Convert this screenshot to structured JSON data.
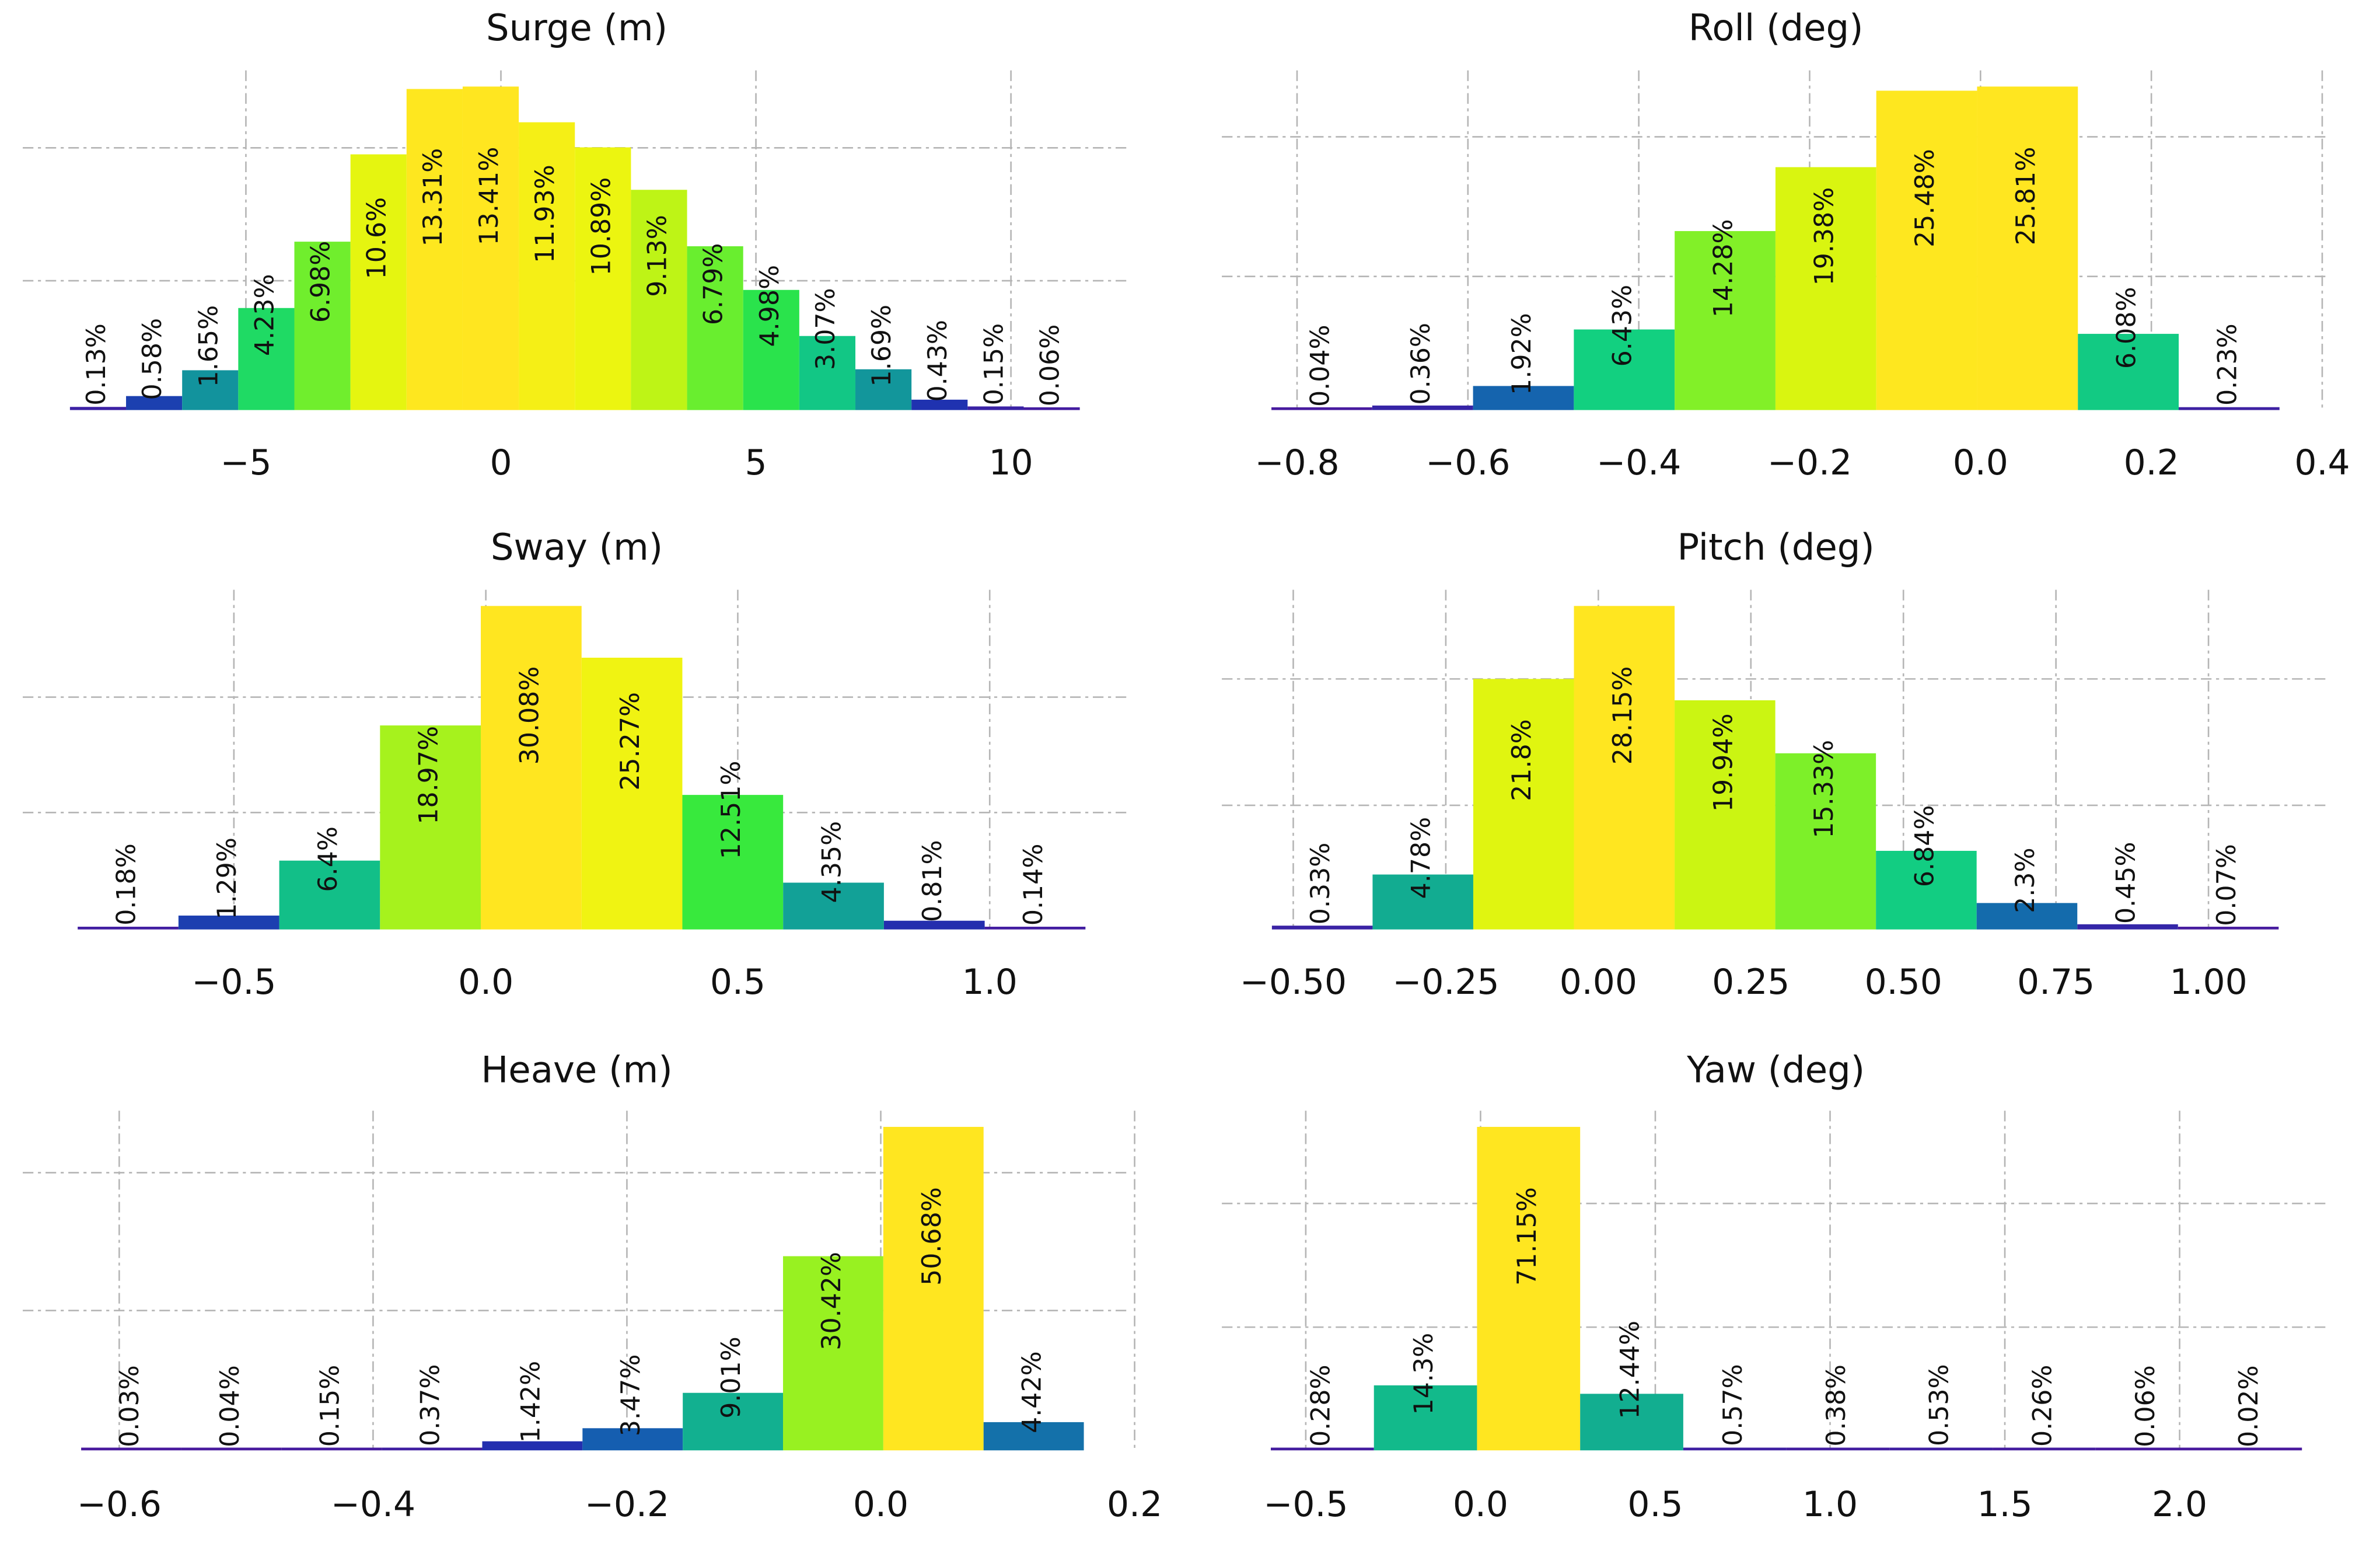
{
  "chart_data": [
    {
      "type": "bar",
      "title": "Surge (m)",
      "bin_start": -8.45,
      "bin_width": 1.1,
      "values": [
        0.13,
        0.58,
        1.65,
        4.23,
        6.98,
        10.6,
        13.31,
        13.41,
        11.93,
        10.89,
        9.13,
        6.79,
        4.98,
        3.07,
        1.69,
        0.43,
        0.15,
        0.06
      ],
      "labels": [
        "0.13%",
        "0.58%",
        "1.65%",
        "4.23%",
        "6.98%",
        "10.6%",
        "13.31%",
        "13.41%",
        "11.93%",
        "10.89%",
        "9.13%",
        "6.79%",
        "4.98%",
        "3.07%",
        "1.69%",
        "0.43%",
        "0.15%",
        "0.06%"
      ],
      "xlim": [
        -9.375,
        12.35
      ],
      "xticks": [
        -5,
        0,
        5,
        10
      ],
      "xtick_labels": [
        "−5",
        "0",
        "5",
        "10"
      ],
      "ygrid": [
        5.36,
        10.87
      ],
      "ymax": 13.41
    },
    {
      "type": "bar",
      "title": "Roll (deg)",
      "bin_start": -0.83,
      "bin_width": 0.118,
      "values": [
        0.04,
        0.36,
        1.92,
        6.43,
        14.28,
        19.38,
        25.48,
        25.81,
        6.08,
        0.23
      ],
      "labels": [
        "0.04%",
        "0.36%",
        "1.92%",
        "6.43%",
        "14.28%",
        "19.38%",
        "25.48%",
        "25.81%",
        "6.08%",
        "0.23%"
      ],
      "xlim": [
        -0.888,
        0.409
      ],
      "xticks": [
        -0.8,
        -0.6,
        -0.4,
        -0.2,
        0.0,
        0.2,
        0.4
      ],
      "xtick_labels": [
        "−0.8",
        "−0.6",
        "−0.4",
        "−0.2",
        "0.0",
        "0.2",
        "0.4"
      ],
      "ygrid": [
        10.66,
        21.8
      ],
      "ymax": 25.81
    },
    {
      "type": "bar",
      "title": "Sway (m)",
      "bin_start": -0.81,
      "bin_width": 0.2,
      "values": [
        0.18,
        1.29,
        6.4,
        18.97,
        30.08,
        25.27,
        12.51,
        4.35,
        0.81,
        0.14
      ],
      "labels": [
        "0.18%",
        "1.29%",
        "6.4%",
        "18.97%",
        "30.08%",
        "25.27%",
        "12.51%",
        "4.35%",
        "0.81%",
        "0.14%"
      ],
      "xlim": [
        -0.919,
        1.28
      ],
      "xticks": [
        -0.5,
        0.0,
        0.5,
        1.0
      ],
      "xtick_labels": [
        "−0.5",
        "0.0",
        "0.5",
        "1.0"
      ],
      "ygrid": [
        10.87,
        21.6
      ],
      "ymax": 30.08
    },
    {
      "type": "bar",
      "title": "Pitch (deg)",
      "bin_start": -0.535,
      "bin_width": 0.165,
      "values": [
        0.33,
        4.78,
        21.8,
        28.15,
        19.94,
        15.33,
        6.84,
        2.3,
        0.45,
        0.07
      ],
      "labels": [
        "0.33%",
        "4.78%",
        "21.8%",
        "28.15%",
        "19.94%",
        "15.33%",
        "6.84%",
        "2.3%",
        "0.45%",
        "0.07%"
      ],
      "xlim": [
        -0.617,
        1.199
      ],
      "xticks": [
        -0.5,
        -0.25,
        0.0,
        0.25,
        0.5,
        0.75,
        1.0
      ],
      "xtick_labels": [
        "−0.50",
        "−0.25",
        "0.00",
        "0.25",
        "0.50",
        "0.75",
        "1.00"
      ],
      "ygrid": [
        10.8,
        21.8
      ],
      "ymax": 28.15
    },
    {
      "type": "bar",
      "title": "Heave (m)",
      "bin_start": -0.63,
      "bin_width": 0.079,
      "values": [
        0.03,
        0.04,
        0.15,
        0.37,
        1.42,
        3.47,
        9.01,
        30.42,
        50.68,
        4.42
      ],
      "labels": [
        "0.03%",
        "0.04%",
        "0.15%",
        "0.37%",
        "1.42%",
        "3.47%",
        "9.01%",
        "30.42%",
        "50.68%",
        "4.42%"
      ],
      "xlim": [
        -0.676,
        0.197
      ],
      "xticks": [
        -0.6,
        -0.4,
        -0.2,
        0.0,
        0.2
      ],
      "xtick_labels": [
        "−0.6",
        "−0.4",
        "−0.2",
        "0.0",
        "0.2"
      ],
      "ygrid": [
        21.9,
        43.5
      ],
      "ymax": 50.68
    },
    {
      "type": "bar",
      "title": "Yaw (deg)",
      "bin_start": -0.6,
      "bin_width": 0.295,
      "values": [
        0.28,
        14.3,
        71.15,
        12.44,
        0.57,
        0.38,
        0.53,
        0.26,
        0.06,
        0.02
      ],
      "labels": [
        "0.28%",
        "14.3%",
        "71.15%",
        "12.44%",
        "0.57%",
        "0.38%",
        "0.53%",
        "0.26%",
        "0.06%",
        "0.02%"
      ],
      "xlim": [
        -0.74,
        2.43
      ],
      "xticks": [
        -0.5,
        0.0,
        0.5,
        1.0,
        1.5,
        2.0
      ],
      "xtick_labels": [
        "−0.5",
        "0.0",
        "0.5",
        "1.0",
        "1.5",
        "2.0"
      ],
      "ygrid": [
        27.1,
        54.3
      ],
      "ymax": 71.15
    }
  ]
}
